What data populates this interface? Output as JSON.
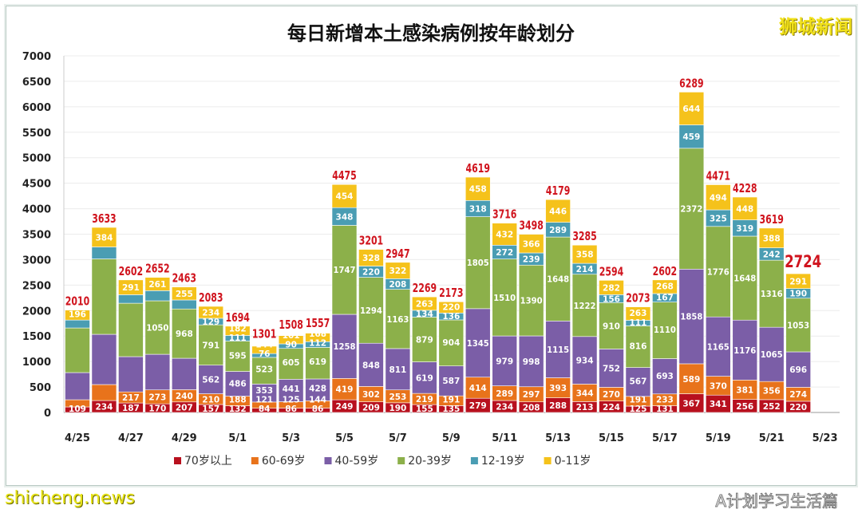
{
  "chart_data": {
    "type": "bar",
    "stacked": true,
    "title": "每日新增本土感染病例按年龄划分",
    "xlabel": "",
    "ylabel": "",
    "ylim": [
      0,
      7000
    ],
    "yticks": [
      0,
      500,
      1000,
      1500,
      2000,
      2500,
      3000,
      3500,
      4000,
      4500,
      5000,
      5500,
      6000,
      6500,
      7000
    ],
    "grid": true,
    "legend_position": "bottom",
    "x_tick_labels": [
      "4/25",
      "4/27",
      "4/29",
      "5/1",
      "5/3",
      "5/5",
      "5/7",
      "5/9",
      "5/11",
      "5/13",
      "5/15",
      "5/17",
      "5/19",
      "5/21",
      "5/23"
    ],
    "categories": [
      "4/25",
      "4/26",
      "4/27",
      "4/28",
      "4/29",
      "4/30",
      "5/1",
      "5/2",
      "5/3",
      "5/4",
      "5/5",
      "5/6",
      "5/7",
      "5/8",
      "5/9",
      "5/10",
      "5/11",
      "5/12",
      "5/13",
      "5/14",
      "5/15",
      "5/16",
      "5/17",
      "5/18",
      "5/19",
      "5/20",
      "5/21",
      "5/22",
      "5/23"
    ],
    "series": [
      {
        "name": "70岁以上",
        "color": "#b8101e",
        "values": [
          109,
          234,
          187,
          170,
          207,
          157,
          132,
          84,
          86,
          86,
          249,
          209,
          190,
          155,
          135,
          279,
          234,
          208,
          288,
          213,
          224,
          125,
          131,
          367,
          341,
          256,
          252,
          220,
          null
        ]
      },
      {
        "name": "60-69岁",
        "color": "#e8731b",
        "values": [
          141,
          314,
          217,
          273,
          240,
          210,
          188,
          121,
          125,
          144,
          419,
          302,
          253,
          219,
          191,
          414,
          289,
          297,
          393,
          344,
          270,
          191,
          233,
          589,
          370,
          381,
          356,
          274,
          null
        ]
      },
      {
        "name": "40-59岁",
        "color": "#7b5ea7",
        "values": [
          533,
          986,
          692,
          699,
          617,
          562,
          486,
          353,
          441,
          428,
          1258,
          848,
          811,
          619,
          587,
          1345,
          979,
          998,
          1115,
          934,
          752,
          567,
          693,
          1858,
          1165,
          1176,
          1065,
          696,
          null
        ]
      },
      {
        "name": "20-39岁",
        "color": "#8cb04a",
        "values": [
          876,
          1480,
          1048,
          1050,
          968,
          791,
          595,
          523,
          605,
          619,
          1747,
          1294,
          1163,
          879,
          904,
          1805,
          1510,
          1390,
          1648,
          1222,
          910,
          816,
          1110,
          2372,
          1776,
          1648,
          1316,
          1053,
          null
        ]
      },
      {
        "name": "12-19岁",
        "color": "#4a9db3",
        "values": [
          155,
          235,
          167,
          199,
          176,
          129,
          111,
          76,
          90,
          112,
          348,
          220,
          208,
          134,
          136,
          318,
          272,
          239,
          289,
          214,
          156,
          111,
          167,
          459,
          325,
          319,
          242,
          190,
          null
        ]
      },
      {
        "name": "0-11岁",
        "color": "#f5c21b",
        "values": [
          196,
          384,
          291,
          261,
          255,
          234,
          182,
          144,
          161,
          168,
          454,
          328,
          322,
          263,
          220,
          458,
          432,
          366,
          446,
          358,
          282,
          263,
          268,
          644,
          494,
          448,
          388,
          291,
          null
        ]
      }
    ],
    "labeled_segments_hidden": [
      [
        0,
        1
      ],
      [
        0,
        2
      ],
      [
        0,
        3
      ],
      [
        0,
        4
      ],
      [
        1,
        1
      ],
      [
        1,
        2
      ],
      [
        1,
        3
      ],
      [
        1,
        4
      ],
      [
        2,
        2
      ],
      [
        2,
        3
      ],
      [
        2,
        4
      ],
      [
        3,
        2
      ],
      [
        3,
        4
      ],
      [
        4,
        2
      ],
      [
        4,
        4
      ]
    ],
    "totals": [
      2010,
      3633,
      2602,
      2652,
      2463,
      2083,
      1694,
      1301,
      1508,
      1557,
      4475,
      3201,
      2947,
      2269,
      2173,
      4619,
      3716,
      3498,
      4179,
      3285,
      2594,
      2073,
      2602,
      6289,
      4471,
      4228,
      3619,
      2724,
      null
    ]
  },
  "watermarks": {
    "top_right": "狮城新闻",
    "bottom_left": "shicheng.news",
    "bottom_right": "A计划学习生活篇"
  }
}
